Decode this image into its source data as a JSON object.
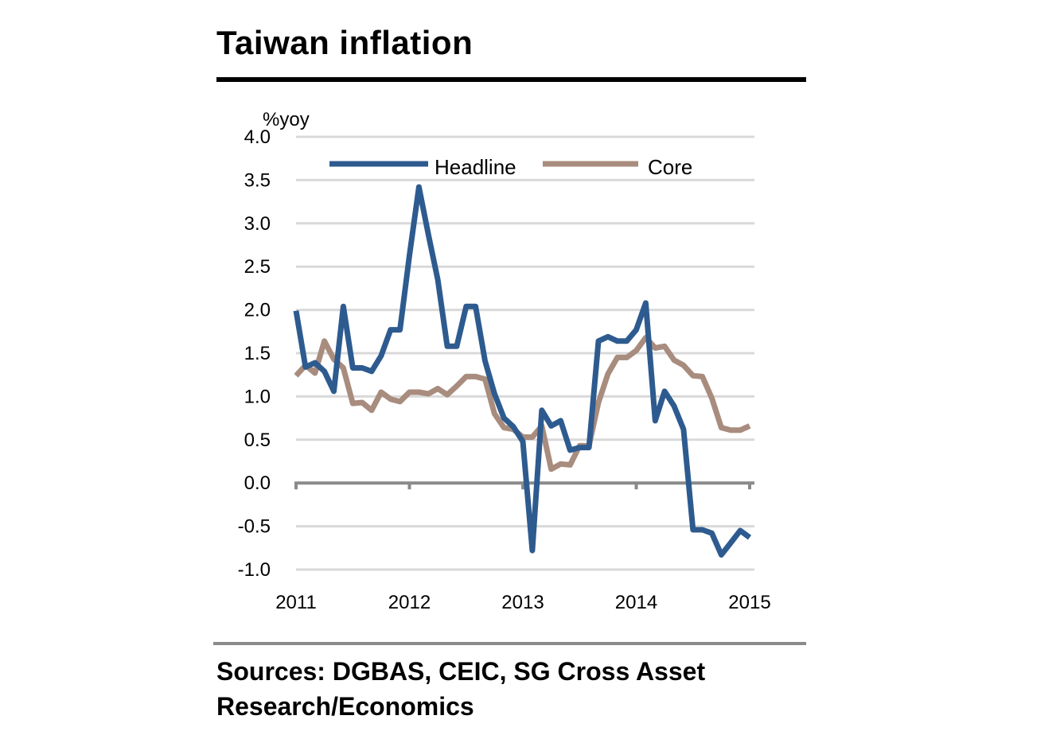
{
  "header": {
    "title": "Taiwan inflation"
  },
  "footer": {
    "source": "Sources: DGBAS, CEIC, SG Cross Asset Research/Economics"
  },
  "chart_data": {
    "type": "line",
    "ylabel": "%yoy",
    "ylim": [
      -1.0,
      4.0
    ],
    "yticks": [
      "4.0",
      "3.5",
      "3.0",
      "2.5",
      "2.0",
      "1.5",
      "1.0",
      "0.5",
      "0.0",
      "-0.5",
      "-1.0"
    ],
    "xticks": [
      "2011",
      "2012",
      "2013",
      "2014",
      "2015"
    ],
    "x_start": "2011-01",
    "x_end": "2015-01",
    "grid": true,
    "legend_position": "top",
    "series": [
      {
        "name": "Headline",
        "color": "#2e5b8f",
        "values": [
          1.99,
          1.34,
          1.39,
          1.29,
          1.06,
          2.04,
          1.33,
          1.33,
          1.29,
          1.47,
          1.77,
          1.77,
          2.63,
          3.42,
          2.87,
          2.35,
          1.58,
          1.58,
          2.04,
          2.04,
          1.41,
          1.03,
          0.75,
          0.65,
          0.48,
          -0.78,
          0.84,
          0.66,
          0.72,
          0.38,
          0.41,
          0.41,
          1.64,
          1.69,
          1.64,
          1.64,
          1.77,
          2.08,
          0.72,
          1.06,
          0.89,
          0.62,
          -0.54,
          -0.54,
          -0.58,
          -0.83,
          -0.69,
          -0.55,
          -0.63
        ]
      },
      {
        "name": "Core",
        "color": "#a88c7e",
        "values": [
          1.24,
          1.36,
          1.27,
          1.64,
          1.43,
          1.33,
          0.92,
          0.93,
          0.84,
          1.05,
          0.97,
          0.94,
          1.05,
          1.05,
          1.03,
          1.09,
          1.02,
          1.12,
          1.23,
          1.23,
          1.2,
          0.8,
          0.64,
          0.62,
          0.53,
          0.53,
          0.66,
          0.16,
          0.22,
          0.21,
          0.43,
          0.43,
          0.93,
          1.26,
          1.45,
          1.45,
          1.53,
          1.68,
          1.56,
          1.58,
          1.42,
          1.36,
          1.24,
          1.23,
          0.98,
          0.64,
          0.61,
          0.61,
          0.66
        ]
      }
    ]
  }
}
